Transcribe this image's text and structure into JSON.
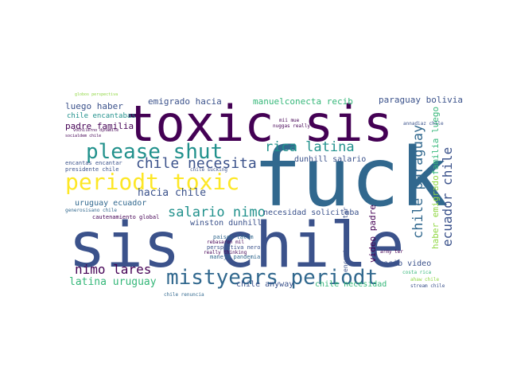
{
  "palette": {
    "background": "#ffffff",
    "dark_purple": "#440154",
    "indigo": "#3b528b",
    "teal_blue": "#31688e",
    "teal": "#21918c",
    "green": "#35b779",
    "lime": "#90d743",
    "yellow": "#fde725"
  },
  "words": [
    {
      "id": "fuck",
      "text": "fuck"
    },
    {
      "id": "toxic-sis",
      "text": "toxic sis"
    },
    {
      "id": "sis-chile",
      "text": "sis chile"
    },
    {
      "id": "please-shut",
      "text": "please shut"
    },
    {
      "id": "periodt-toxic",
      "text": "periodt toxic"
    },
    {
      "id": "mistyears-periodt",
      "text": "mistyears periodt"
    },
    {
      "id": "chile-necesita",
      "text": "chile necesita"
    },
    {
      "id": "rica-latina",
      "text": "rica latina"
    },
    {
      "id": "salario-nimo",
      "text": "salario nimo"
    },
    {
      "id": "hacia-chile",
      "text": "hacia chile"
    },
    {
      "id": "nimo-lares",
      "text": "nimo lares"
    },
    {
      "id": "latina-uruguay",
      "text": "latina uruguay"
    },
    {
      "id": "chile-paraguay",
      "text": "chile paraguay"
    },
    {
      "id": "ecuador-chile",
      "text": "ecuador chile"
    },
    {
      "id": "emigrado-hacia",
      "text": "emigrado hacia"
    },
    {
      "id": "manuelconecta-recib",
      "text": "manuelconecta recib"
    },
    {
      "id": "paraguay-bolivia",
      "text": "paraguay bolivia"
    },
    {
      "id": "luego-haber",
      "text": "luego haber"
    },
    {
      "id": "padre-familia",
      "text": "padre familia"
    },
    {
      "id": "chile-encantabas",
      "text": "chile encantabas"
    },
    {
      "id": "dunhill-salario",
      "text": "dunhill salario"
    },
    {
      "id": "necesidad-solicitaba",
      "text": "necesidad solicitaba"
    },
    {
      "id": "winston-dunhill",
      "text": "winston dunhill"
    },
    {
      "id": "uruguay-ecuador",
      "text": "uruguay ecuador"
    },
    {
      "id": "recib-video",
      "text": "recib video"
    },
    {
      "id": "video-padre",
      "text": "video padre"
    },
    {
      "id": "chile-necesidad",
      "text": "chile necesidad"
    },
    {
      "id": "chile-anyway",
      "text": "chile anyway"
    },
    {
      "id": "haber-emigrado",
      "text": "haber emigrado"
    },
    {
      "id": "familia-luego",
      "text": "familia luego"
    },
    {
      "id": "encantas-encantar",
      "text": "encantas encantar"
    },
    {
      "id": "presidente-chile",
      "text": "presidente chile"
    },
    {
      "id": "generoso-chile",
      "text": "generosisano chile"
    },
    {
      "id": "cautenamiento-global",
      "text": "cautenamiento global"
    },
    {
      "id": "perspectiva-nero",
      "text": "perspectiva nero"
    },
    {
      "id": "manejo-pandemia",
      "text": "manejo pandemia"
    },
    {
      "id": "paises-latam",
      "text": "paises latam"
    },
    {
      "id": "chile-sucking",
      "text": "chile sucking"
    },
    {
      "id": "nuggas-really",
      "text": "nuggas really"
    },
    {
      "id": "mii-mue",
      "text": "mii mue"
    },
    {
      "id": "rebasaron-mil",
      "text": "rebasaron mil"
    },
    {
      "id": "really-thinking",
      "text": "really thinking"
    },
    {
      "id": "chile-renuncia",
      "text": "chile renuncia"
    },
    {
      "id": "costa-rica",
      "text": "costa rica"
    },
    {
      "id": "ahaw-chile",
      "text": "ahaw chile"
    },
    {
      "id": "stream-chile",
      "text": "stream chile"
    },
    {
      "id": "army-ter",
      "text": "army ter"
    },
    {
      "id": "annadiaz-chile",
      "text": "annadiaz chile"
    },
    {
      "id": "globos-perspectiva",
      "text": "globos perspectiva"
    },
    {
      "id": "vochilerno-dynamite",
      "text": "vochilerno dynamite"
    },
    {
      "id": "socialdem-chile",
      "text": "socialdem chile"
    }
  ]
}
